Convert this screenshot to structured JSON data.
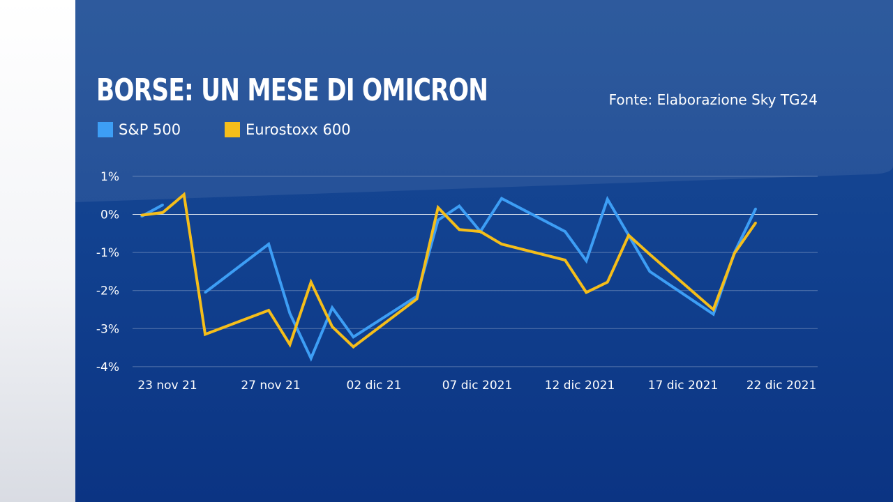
{
  "title": "BORSE: UN MESE DI OMICRON",
  "source": "Fonte: Elaborazione Sky TG24",
  "colors": {
    "sp500": "#3d9ef5",
    "eurostoxx": "#f5be1a",
    "background": "#124290"
  },
  "chart_data": {
    "type": "line",
    "x": [
      "2021-11-22",
      "2021-11-23",
      "2021-11-24",
      "2021-11-25",
      "2021-11-26",
      "2021-11-29",
      "2021-11-30",
      "2021-12-01",
      "2021-12-02",
      "2021-12-03",
      "2021-12-06",
      "2021-12-07",
      "2021-12-08",
      "2021-12-09",
      "2021-12-10",
      "2021-12-13",
      "2021-12-14",
      "2021-12-15",
      "2021-12-16",
      "2021-12-17",
      "2021-12-20",
      "2021-12-21",
      "2021-12-22"
    ],
    "x_tick_labels": [
      "23 nov 21",
      "27 nov 21",
      "02 dic 21",
      "07 dic 2021",
      "12 dic 2021",
      "17 dic 2021",
      "22 dic 2021"
    ],
    "y_tick_labels": [
      "1%",
      "0%",
      "-1%",
      "-2%",
      "-3%",
      "-4%"
    ],
    "ylim": [
      -4,
      1
    ],
    "yunit": "%",
    "grid": true,
    "legend": "top-left",
    "series": [
      {
        "name": "S&P 500",
        "color": "#3d9ef5",
        "segments": [
          [
            [
              "2021-11-22",
              -0.05
            ],
            [
              "2021-11-23",
              0.25
            ]
          ],
          [
            [
              "2021-11-25",
              -2.05
            ],
            [
              "2021-11-28",
              -0.78
            ],
            [
              "2021-11-29",
              -2.6
            ],
            [
              "2021-11-30",
              -3.78
            ],
            [
              "2021-12-01",
              -2.45
            ],
            [
              "2021-12-02",
              -3.22
            ],
            [
              "2021-12-05",
              -2.15
            ],
            [
              "2021-12-06",
              -0.15
            ],
            [
              "2021-12-07",
              0.22
            ],
            [
              "2021-12-08",
              -0.45
            ],
            [
              "2021-12-09",
              0.42
            ],
            [
              "2021-12-12",
              -0.45
            ],
            [
              "2021-12-13",
              -1.22
            ],
            [
              "2021-12-14",
              0.4
            ],
            [
              "2021-12-15",
              -0.55
            ],
            [
              "2021-12-16",
              -1.5
            ],
            [
              "2021-12-19",
              -2.62
            ],
            [
              "2021-12-20",
              -1.0
            ],
            [
              "2021-12-21",
              0.15
            ]
          ]
        ]
      },
      {
        "name": "Eurostoxx 600",
        "color": "#f5be1a",
        "segments": [
          [
            [
              "2021-11-22",
              -0.02
            ],
            [
              "2021-11-23",
              0.05
            ],
            [
              "2021-11-24",
              0.52
            ],
            [
              "2021-11-25",
              -3.15
            ],
            [
              "2021-11-28",
              -2.52
            ],
            [
              "2021-11-29",
              -3.42
            ],
            [
              "2021-11-30",
              -1.78
            ],
            [
              "2021-12-01",
              -2.95
            ],
            [
              "2021-12-02",
              -3.48
            ],
            [
              "2021-12-05",
              -2.22
            ],
            [
              "2021-12-06",
              0.18
            ],
            [
              "2021-12-07",
              -0.4
            ],
            [
              "2021-12-08",
              -0.45
            ],
            [
              "2021-12-09",
              -0.78
            ],
            [
              "2021-12-12",
              -1.2
            ],
            [
              "2021-12-13",
              -2.05
            ],
            [
              "2021-12-14",
              -1.78
            ],
            [
              "2021-12-15",
              -0.55
            ],
            [
              "2021-12-16",
              -1.05
            ],
            [
              "2021-12-19",
              -2.5
            ],
            [
              "2021-12-20",
              -1.02
            ],
            [
              "2021-12-21",
              -0.22
            ]
          ]
        ]
      }
    ]
  }
}
